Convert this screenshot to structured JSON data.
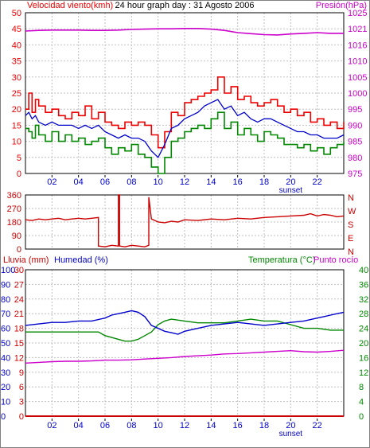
{
  "title": "24 hour graph day : 31 Agosto 2006",
  "colors": {
    "wind_max": "#ee0000",
    "wind_avg": "#0000cc",
    "wind_min": "#008800",
    "pressure": "#cc00cc",
    "direction": "#cc0000",
    "rain": "#cc0000",
    "humidity": "#0000cc",
    "temperature": "#008800",
    "dewpoint": "#cc00cc",
    "grid": "#c0c0c0",
    "frame": "#000000"
  },
  "hour_ticks": [
    "02",
    "04",
    "06",
    "08",
    "10",
    "12",
    "14",
    "16",
    "18",
    "20",
    "22"
  ],
  "sunset_label": "sunset",
  "chart_data": [
    {
      "type": "line",
      "label_left": "Velocidad viento(kmh)",
      "label_right": "Presión(hPa)",
      "x_unit": "hour",
      "xlim": [
        0,
        24
      ],
      "ylim_left": [
        0,
        50
      ],
      "yticks_left": [
        "0",
        "5",
        "10",
        "15",
        "20",
        "25",
        "30",
        "35",
        "40",
        "45",
        "50"
      ],
      "ylim_right": [
        975,
        1025
      ],
      "yticks_right": [
        "975",
        "980",
        "985",
        "990",
        "995",
        "1000",
        "1005",
        "1010",
        "1016",
        "1021",
        "1025"
      ],
      "grid": true,
      "series": [
        {
          "name": "wind_max",
          "x": [
            0,
            0.25,
            0.5,
            0.75,
            1,
            1.5,
            2,
            2.5,
            3,
            3.5,
            4,
            4.5,
            5,
            5.5,
            6,
            6.5,
            7,
            7.5,
            8,
            8.5,
            9,
            9.5,
            10,
            10.5,
            11,
            11.5,
            12,
            12.5,
            13,
            13.5,
            14,
            14.5,
            15,
            15.5,
            16,
            16.5,
            17,
            17.5,
            18,
            18.5,
            19,
            19.5,
            20,
            20.5,
            21,
            21.5,
            22,
            22.5,
            23,
            23.5,
            24
          ],
          "y": [
            20,
            25,
            19,
            23,
            21,
            19,
            20,
            18,
            17,
            19,
            18,
            21,
            17,
            19,
            16,
            15,
            14,
            16,
            15,
            16,
            15,
            12,
            8,
            13,
            19,
            18,
            22,
            23,
            24,
            25,
            26,
            30,
            25,
            27,
            23,
            24,
            22,
            21,
            22,
            23,
            21,
            19,
            20,
            18,
            19,
            16,
            17,
            15,
            16,
            14,
            16
          ]
        },
        {
          "name": "wind_avg",
          "x": [
            0,
            0.25,
            0.5,
            0.75,
            1,
            1.5,
            2,
            2.5,
            3,
            3.5,
            4,
            4.5,
            5,
            5.5,
            6,
            6.5,
            7,
            7.5,
            8,
            8.5,
            9,
            9.5,
            10,
            10.5,
            11,
            11.5,
            12,
            12.5,
            13,
            13.5,
            14,
            14.5,
            15,
            15.5,
            16,
            16.5,
            17,
            17.5,
            18,
            18.5,
            19,
            19.5,
            20,
            20.5,
            21,
            21.5,
            22,
            22.5,
            23,
            23.5,
            24
          ],
          "y": [
            18,
            19,
            17,
            18,
            16,
            15,
            16,
            15,
            15,
            15,
            14,
            15,
            14,
            15,
            13,
            12,
            11,
            12,
            11,
            11,
            10,
            7,
            5,
            9,
            14,
            15,
            17,
            18,
            19,
            21,
            22,
            23,
            20,
            21,
            18,
            19,
            17,
            16,
            17,
            17,
            16,
            15,
            14,
            13,
            13,
            12,
            12,
            11,
            11,
            11,
            12
          ]
        },
        {
          "name": "wind_min",
          "x": [
            0,
            0.25,
            0.5,
            0.75,
            1,
            1.5,
            2,
            2.5,
            3,
            3.5,
            4,
            4.5,
            5,
            5.5,
            6,
            6.5,
            7,
            7.5,
            8,
            8.5,
            9,
            9.5,
            10,
            10.5,
            11,
            11.5,
            12,
            12.5,
            13,
            13.5,
            14,
            14.5,
            15,
            15.5,
            16,
            16.5,
            17,
            17.5,
            18,
            18.5,
            19,
            19.5,
            20,
            20.5,
            21,
            21.5,
            22,
            22.5,
            23,
            23.5,
            24
          ],
          "y": [
            14,
            13,
            11,
            15,
            12,
            10,
            13,
            10,
            12,
            10,
            11,
            9,
            10,
            11,
            8,
            6,
            8,
            7,
            9,
            6,
            5,
            2,
            0,
            5,
            10,
            11,
            13,
            14,
            15,
            14,
            17,
            19,
            14,
            16,
            12,
            14,
            12,
            10,
            13,
            12,
            11,
            9,
            9,
            8,
            9,
            7,
            8,
            6,
            8,
            9,
            10
          ]
        },
        {
          "name": "pressure",
          "axis": "right",
          "x": [
            0,
            1,
            2,
            3,
            4,
            5,
            6,
            7,
            8,
            9,
            10,
            11,
            12,
            13,
            14,
            15,
            16,
            17,
            18,
            19,
            20,
            21,
            22,
            23,
            24
          ],
          "y": [
            1019.3,
            1019.5,
            1019.6,
            1019.6,
            1019.6,
            1019.5,
            1019.5,
            1019.6,
            1019.8,
            1019.9,
            1020.0,
            1020.0,
            1020.1,
            1020.1,
            1019.9,
            1019.5,
            1018.8,
            1018.5,
            1018.2,
            1018.1,
            1018.4,
            1018.6,
            1018.8,
            1018.6,
            1018.6
          ]
        }
      ]
    },
    {
      "type": "line",
      "x_unit": "hour",
      "xlim": [
        0,
        24
      ],
      "ylim": [
        0,
        360
      ],
      "yticks": [
        "0",
        "90",
        "180",
        "270",
        "360"
      ],
      "compass_labels": [
        "N",
        "W",
        "S",
        "E",
        "N"
      ],
      "grid": true,
      "series": [
        {
          "name": "wind_direction",
          "x": [
            0,
            0.5,
            1,
            1.5,
            2,
            2.5,
            3,
            3.5,
            4,
            4.5,
            5,
            5.5,
            5.5,
            6,
            6.5,
            7,
            7,
            7.1,
            7.1,
            7.5,
            8,
            8.5,
            9,
            9.3,
            9.3,
            9.5,
            10,
            10.5,
            11,
            11.5,
            12,
            13,
            14,
            15,
            16,
            17,
            18,
            19,
            20,
            21,
            21.5,
            22,
            22.5,
            23,
            23.5,
            24
          ],
          "y": [
            195,
            190,
            200,
            195,
            200,
            205,
            195,
            200,
            205,
            200,
            205,
            210,
            20,
            15,
            25,
            20,
            360,
            360,
            20,
            15,
            25,
            20,
            15,
            25,
            345,
            200,
            180,
            175,
            185,
            180,
            195,
            190,
            200,
            195,
            205,
            200,
            210,
            215,
            220,
            225,
            235,
            220,
            230,
            225,
            215,
            220
          ]
        }
      ]
    },
    {
      "type": "line",
      "label_rain": "Lluvia (mm)",
      "label_humidity": "Humedad (%)",
      "label_temperature": "Temperatura (°C)",
      "label_dewpoint": "Punto rocío",
      "x_unit": "hour",
      "xlim": [
        0,
        24
      ],
      "ylim_humidity": [
        0,
        100
      ],
      "yticks_humidity": [
        "0",
        "10",
        "20",
        "30",
        "40",
        "50",
        "60",
        "70",
        "80",
        "90",
        "100"
      ],
      "ylim_rain": [
        0,
        30
      ],
      "yticks_rain": [
        "0",
        "3",
        "6",
        "9",
        "12",
        "15",
        "18",
        "21",
        "24",
        "27",
        "30"
      ],
      "ylim_temperature": [
        0,
        40
      ],
      "yticks_temperature": [
        "0",
        "4",
        "8",
        "12",
        "16",
        "20",
        "24",
        "28",
        "32",
        "36",
        "40"
      ],
      "grid": true,
      "series": [
        {
          "name": "rain",
          "x": [
            0,
            24
          ],
          "y": [
            0,
            0
          ]
        },
        {
          "name": "humidity",
          "x": [
            0,
            1,
            2,
            3,
            4,
            5,
            6,
            6.5,
            7,
            7.5,
            8,
            8.5,
            9,
            9.5,
            10,
            10.5,
            11,
            11.5,
            12,
            13,
            14,
            15,
            16,
            17,
            18,
            19,
            20,
            21,
            22,
            22.5,
            23,
            23.5,
            24
          ],
          "y": [
            62,
            63,
            64,
            64,
            65,
            65,
            67,
            69,
            70,
            71,
            72,
            71,
            68,
            62,
            60,
            58,
            57,
            56,
            58,
            60,
            62,
            63,
            64,
            63,
            62,
            63,
            64,
            65,
            67,
            68,
            69,
            70,
            71
          ]
        },
        {
          "name": "temperature",
          "x": [
            0,
            1,
            2,
            3,
            4,
            5,
            5.5,
            6,
            6.5,
            7,
            7.5,
            8,
            8.5,
            9,
            9.5,
            10,
            10.5,
            11,
            12,
            13,
            14,
            15,
            16,
            17,
            18,
            19,
            20,
            21,
            22,
            23,
            24
          ],
          "y": [
            23,
            23,
            23,
            23,
            23,
            23,
            23,
            22,
            21.5,
            21,
            20.5,
            20.5,
            21,
            22,
            23,
            25,
            26,
            26.5,
            26,
            25.5,
            25.5,
            25.5,
            26,
            26.5,
            26,
            26,
            25,
            24,
            24,
            23.5,
            23.5
          ]
        },
        {
          "name": "dewpoint",
          "x": [
            0,
            1,
            2,
            3,
            4,
            5,
            6,
            7,
            8,
            9,
            10,
            11,
            12,
            13,
            14,
            15,
            16,
            17,
            18,
            19,
            20,
            21,
            22,
            23,
            24
          ],
          "y": [
            14.5,
            14.7,
            14.9,
            15,
            15,
            15.1,
            15.3,
            15.3,
            15.4,
            15.6,
            15.8,
            16,
            16.3,
            16.5,
            16.7,
            17,
            17.1,
            17.3,
            17.5,
            17.7,
            17.9,
            17.6,
            17.5,
            17.7,
            18
          ]
        }
      ]
    }
  ]
}
